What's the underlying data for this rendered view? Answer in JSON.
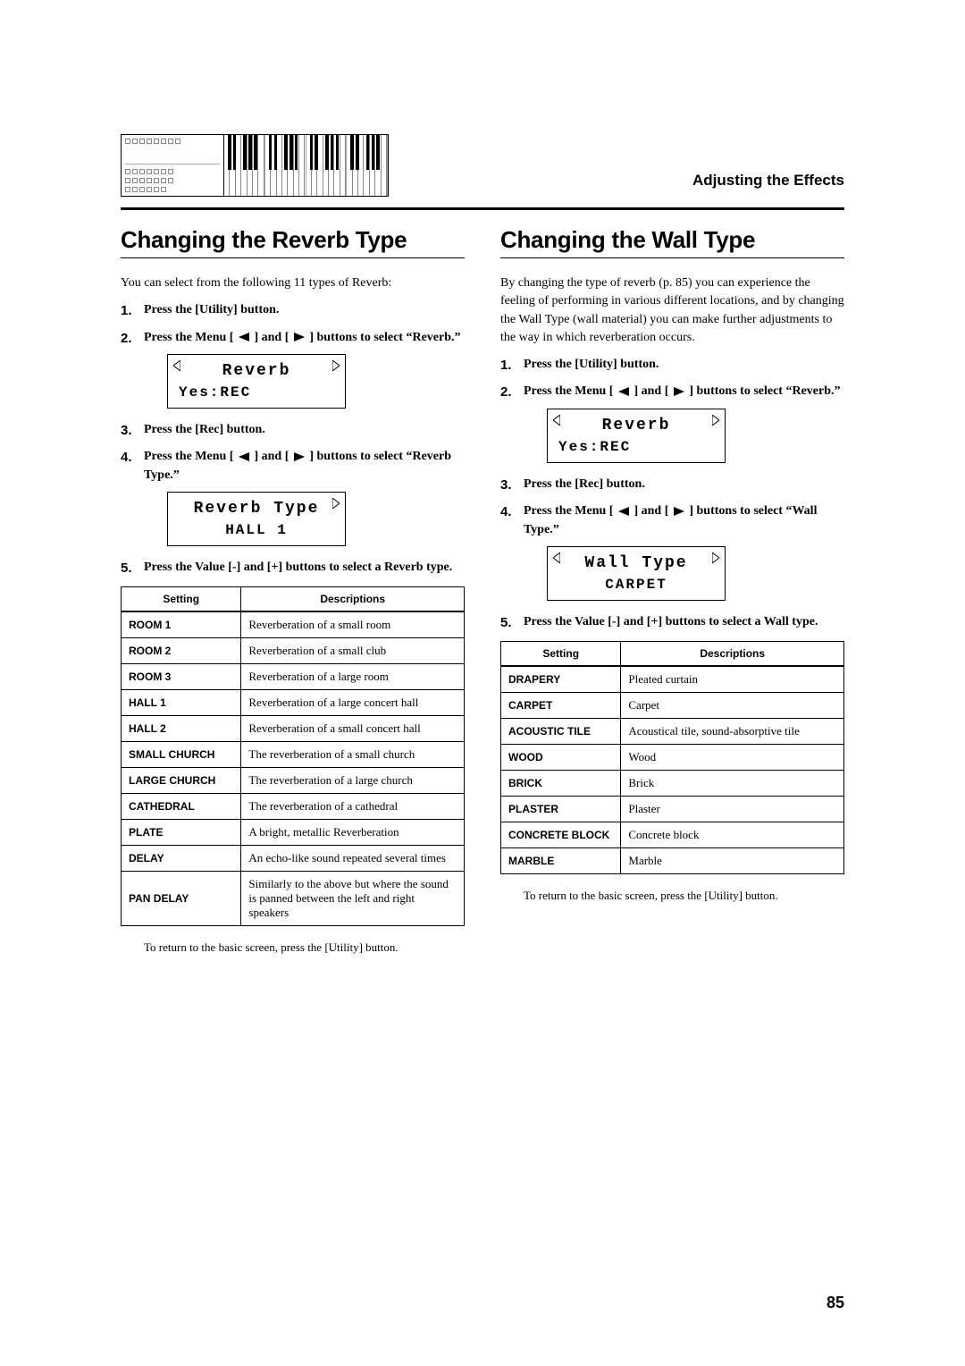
{
  "header": {
    "section_label": "Adjusting the Effects"
  },
  "left": {
    "title": "Changing the Reverb Type",
    "intro": "You can select from the following 11 types of Reverb:",
    "steps": {
      "s1": "Press the [Utility] button.",
      "s2a": "Press the Menu [ ",
      "s2b": " ] and [ ",
      "s2c": " ] buttons to select “Reverb.”",
      "lcd1_line1": "Reverb",
      "lcd1_line2": "Yes:REC",
      "s3": "Press the [Rec] button.",
      "s4a": "Press the Menu [ ",
      "s4b": " ] and [ ",
      "s4c": " ] buttons to select “Reverb Type.”",
      "lcd2_line1": "Reverb Type",
      "lcd2_line2": "HALL 1",
      "s5": "Press the Value [-] and [+] buttons to select a Reverb type."
    },
    "table": {
      "head_setting": "Setting",
      "head_desc": "Descriptions",
      "rows": [
        {
          "s": "ROOM 1",
          "d": "Reverberation of a small room"
        },
        {
          "s": "ROOM 2",
          "d": "Reverberation of a small club"
        },
        {
          "s": "ROOM 3",
          "d": "Reverberation of a large room"
        },
        {
          "s": "HALL 1",
          "d": "Reverberation of a large concert hall"
        },
        {
          "s": "HALL 2",
          "d": "Reverberation of a small concert hall"
        },
        {
          "s": "SMALL CHURCH",
          "d": "The reverberation of a small church"
        },
        {
          "s": "LARGE CHURCH",
          "d": "The reverberation of a large church"
        },
        {
          "s": "CATHEDRAL",
          "d": "The reverberation of a cathedral"
        },
        {
          "s": "PLATE",
          "d": "A bright, metallic Reverberation"
        },
        {
          "s": "DELAY",
          "d": "An echo-like sound repeated several times"
        },
        {
          "s": "PAN DELAY",
          "d": "Similarly to the above but where the sound is panned between the left and right speakers"
        }
      ]
    },
    "footnote": "To return to the basic screen, press the [Utility] button."
  },
  "right": {
    "title": "Changing the Wall Type",
    "intro": "By changing the type of reverb (p. 85) you can experience the feeling of performing in various different locations, and by changing the Wall Type (wall material) you can make further adjustments to the way in which reverberation occurs.",
    "steps": {
      "s1": "Press the [Utility] button.",
      "s2a": "Press the Menu [ ",
      "s2b": " ] and [ ",
      "s2c": " ] buttons to select “Reverb.”",
      "lcd1_line1": "Reverb",
      "lcd1_line2": "Yes:REC",
      "s3": "Press the [Rec] button.",
      "s4a": "Press the Menu [ ",
      "s4b": " ] and [ ",
      "s4c": " ] buttons to select “Wall Type.”",
      "lcd2_line1": "Wall Type",
      "lcd2_line2": "CARPET",
      "s5": "Press the Value [-] and [+] buttons to select a Wall type."
    },
    "table": {
      "head_setting": "Setting",
      "head_desc": "Descriptions",
      "rows": [
        {
          "s": "DRAPERY",
          "d": "Pleated curtain"
        },
        {
          "s": "CARPET",
          "d": "Carpet"
        },
        {
          "s": "ACOUSTIC TILE",
          "d": "Acoustical tile, sound-absorptive tile"
        },
        {
          "s": "WOOD",
          "d": "Wood"
        },
        {
          "s": "BRICK",
          "d": "Brick"
        },
        {
          "s": "PLASTER",
          "d": "Plaster"
        },
        {
          "s": "CONCRETE BLOCK",
          "d": "Concrete block"
        },
        {
          "s": "MARBLE",
          "d": "Marble"
        }
      ]
    },
    "footnote": "To return to the basic screen, press the [Utility] button."
  },
  "page_number": "85",
  "style": {
    "icon_fill": "#000000",
    "lcd_font": "Courier New"
  }
}
